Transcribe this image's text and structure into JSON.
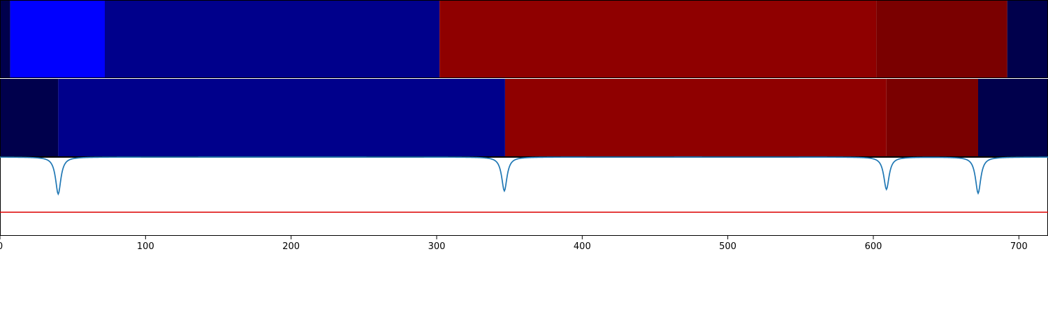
{
  "chart_data": {
    "type": "heatmap",
    "title": "",
    "xlabel": "",
    "ylabel": "",
    "xlim": [
      0,
      720
    ],
    "x_ticks": [
      0,
      100,
      200,
      300,
      400,
      500,
      600,
      700
    ],
    "x_tick_labels": [
      "0",
      "100",
      "200",
      "300",
      "400",
      "500",
      "600",
      "700"
    ],
    "grid": false,
    "rows": [
      {
        "segments": [
          {
            "start": 0,
            "end": 7,
            "color": "#00004c"
          },
          {
            "start": 7,
            "end": 72,
            "color": "#0000ff"
          },
          {
            "start": 72,
            "end": 302,
            "color": "#00008b"
          },
          {
            "start": 302,
            "end": 602,
            "color": "#8f0000"
          },
          {
            "start": 602,
            "end": 692,
            "color": "#7a0000"
          },
          {
            "start": 692,
            "end": 720,
            "color": "#00004c"
          }
        ]
      },
      {
        "segments": [
          {
            "start": 0,
            "end": 40,
            "color": "#00004c"
          },
          {
            "start": 40,
            "end": 347,
            "color": "#00008b"
          },
          {
            "start": 347,
            "end": 609,
            "color": "#8f0000"
          },
          {
            "start": 609,
            "end": 672,
            "color": "#7a0000"
          },
          {
            "start": 672,
            "end": 720,
            "color": "#00004c"
          }
        ]
      }
    ],
    "line_panel": {
      "ylim": [
        0,
        1
      ],
      "baseline": 1.0,
      "threshold": 0.3,
      "threshold_color": "#dd0000",
      "line_color": "#1f77b4",
      "dips": [
        {
          "x": 40,
          "depth": 0.47
        },
        {
          "x": 346.5,
          "depth": 0.43
        },
        {
          "x": 609,
          "depth": 0.41
        },
        {
          "x": 672,
          "depth": 0.46
        }
      ]
    }
  }
}
